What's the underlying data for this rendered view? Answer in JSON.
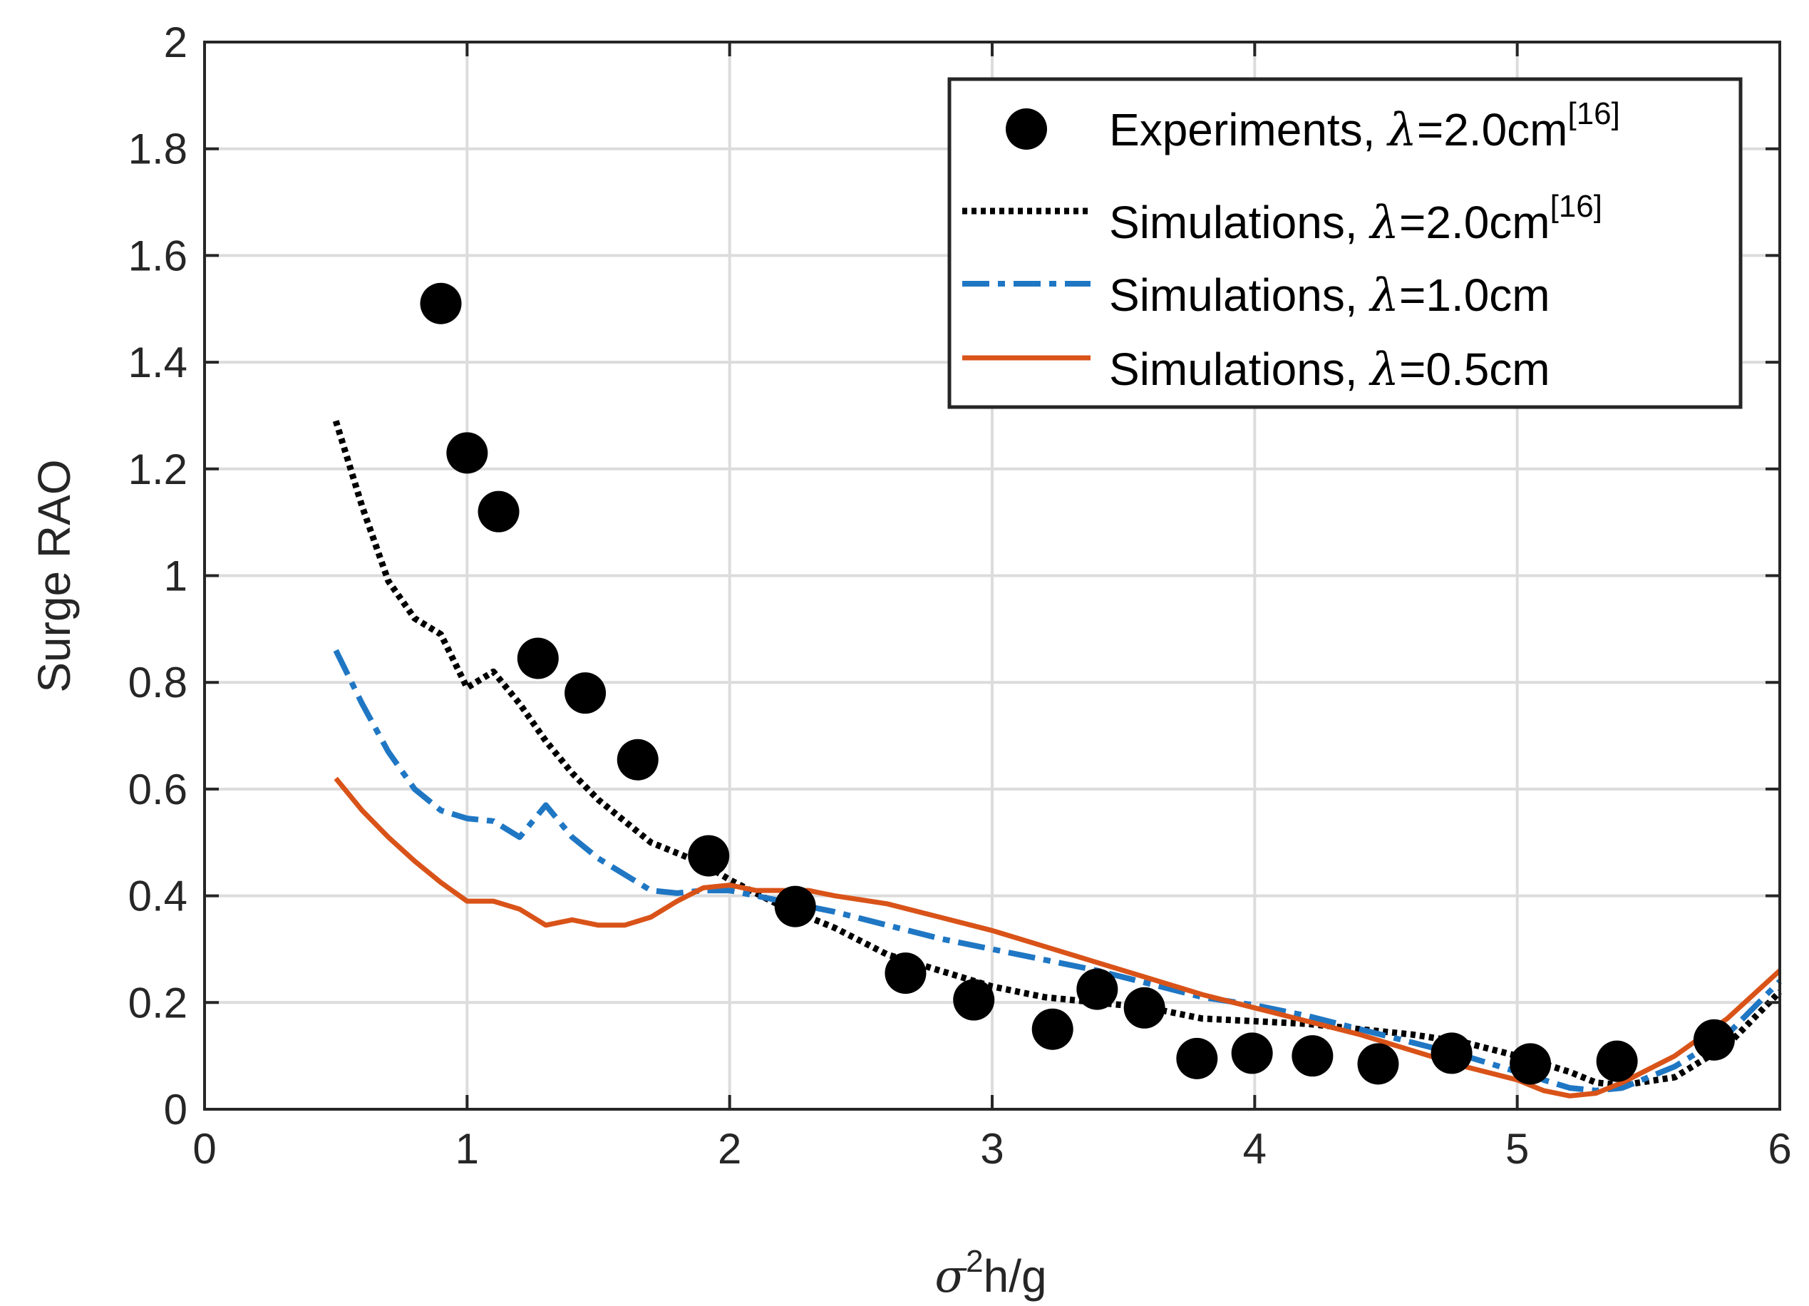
{
  "chart_data": {
    "type": "line",
    "xlabel": {
      "symbol": "σ",
      "sup": "2",
      "rest": "h/g"
    },
    "ylabel": "Surge RAO",
    "xlim": [
      0,
      6
    ],
    "ylim": [
      0,
      2
    ],
    "xticks": [
      0,
      1,
      2,
      3,
      4,
      5,
      6
    ],
    "yticks": [
      0,
      0.2,
      0.4,
      0.6,
      0.8,
      1,
      1.2,
      1.4,
      1.6,
      1.8,
      2
    ],
    "xtick_labels": [
      "0",
      "1",
      "2",
      "3",
      "4",
      "5",
      "6"
    ],
    "ytick_labels": [
      "0",
      "0.2",
      "0.4",
      "0.6",
      "0.8",
      "1",
      "1.2",
      "1.4",
      "1.6",
      "1.8",
      "2"
    ],
    "grid": true,
    "legend_position": "top-right",
    "series": [
      {
        "name": "Experiments, λ=2.0cm[16]",
        "legend": {
          "prefix": "Experiments, ",
          "symbol": "λ",
          "suffix": "=2.0cm",
          "sup": "[16]"
        },
        "style": "markers",
        "color": "#000000",
        "x": [
          0.9,
          1.0,
          1.12,
          1.27,
          1.45,
          1.65,
          1.92,
          2.25,
          2.67,
          2.93,
          3.23,
          3.4,
          3.58,
          3.78,
          3.99,
          4.22,
          4.47,
          4.75,
          5.05,
          5.38,
          5.75
        ],
        "y": [
          1.51,
          1.23,
          1.12,
          0.845,
          0.78,
          0.655,
          0.475,
          0.38,
          0.255,
          0.205,
          0.15,
          0.225,
          0.19,
          0.095,
          0.105,
          0.1,
          0.085,
          0.105,
          0.085,
          0.09,
          0.13
        ]
      },
      {
        "name": "Simulations, λ=2.0cm[16]",
        "legend": {
          "prefix": "Simulations,  ",
          "symbol": "λ",
          "suffix": "=2.0cm",
          "sup": "[16]"
        },
        "style": "dotted",
        "color": "#000000",
        "x": [
          0.5,
          0.6,
          0.7,
          0.8,
          0.9,
          1.0,
          1.1,
          1.2,
          1.3,
          1.4,
          1.5,
          1.6,
          1.7,
          1.8,
          1.9,
          2.0,
          2.2,
          2.4,
          2.6,
          2.8,
          3.0,
          3.2,
          3.4,
          3.6,
          3.8,
          4.0,
          4.2,
          4.4,
          4.6,
          4.8,
          5.0,
          5.2,
          5.3,
          5.4,
          5.6,
          5.8,
          6.0
        ],
        "y": [
          1.29,
          1.13,
          0.99,
          0.92,
          0.89,
          0.79,
          0.82,
          0.76,
          0.69,
          0.63,
          0.58,
          0.54,
          0.5,
          0.48,
          0.46,
          0.43,
          0.38,
          0.34,
          0.29,
          0.26,
          0.23,
          0.21,
          0.2,
          0.19,
          0.17,
          0.165,
          0.16,
          0.15,
          0.14,
          0.125,
          0.1,
          0.07,
          0.05,
          0.045,
          0.06,
          0.12,
          0.22
        ]
      },
      {
        "name": "Simulations, λ=1.0cm",
        "legend": {
          "prefix": "Simulations, ",
          "symbol": "λ",
          "suffix": "=1.0cm",
          "sup": ""
        },
        "style": "dashdot",
        "color": "#1f77c4",
        "x": [
          0.5,
          0.6,
          0.7,
          0.8,
          0.9,
          1.0,
          1.1,
          1.2,
          1.3,
          1.4,
          1.5,
          1.6,
          1.7,
          1.8,
          1.9,
          2.0,
          2.2,
          2.4,
          2.6,
          2.8,
          3.0,
          3.2,
          3.4,
          3.6,
          3.8,
          4.0,
          4.2,
          4.4,
          4.6,
          4.8,
          5.0,
          5.2,
          5.3,
          5.4,
          5.6,
          5.8,
          6.0
        ],
        "y": [
          0.86,
          0.76,
          0.67,
          0.6,
          0.56,
          0.545,
          0.54,
          0.51,
          0.57,
          0.51,
          0.47,
          0.44,
          0.41,
          0.405,
          0.41,
          0.41,
          0.39,
          0.37,
          0.345,
          0.32,
          0.3,
          0.28,
          0.26,
          0.235,
          0.21,
          0.195,
          0.175,
          0.15,
          0.125,
          0.1,
          0.07,
          0.04,
          0.035,
          0.04,
          0.08,
          0.14,
          0.24
        ]
      },
      {
        "name": "Simulations, λ=0.5cm",
        "legend": {
          "prefix": "Simulations, ",
          "symbol": "λ",
          "suffix": "=0.5cm",
          "sup": ""
        },
        "style": "solid",
        "color": "#d95319",
        "x": [
          0.5,
          0.6,
          0.7,
          0.8,
          0.9,
          1.0,
          1.1,
          1.2,
          1.3,
          1.4,
          1.5,
          1.6,
          1.7,
          1.8,
          1.9,
          2.0,
          2.1,
          2.2,
          2.3,
          2.4,
          2.6,
          2.8,
          3.0,
          3.2,
          3.4,
          3.6,
          3.8,
          4.0,
          4.2,
          4.4,
          4.6,
          4.8,
          5.0,
          5.1,
          5.2,
          5.3,
          5.4,
          5.6,
          5.8,
          6.0
        ],
        "y": [
          0.62,
          0.56,
          0.51,
          0.465,
          0.425,
          0.39,
          0.39,
          0.375,
          0.345,
          0.355,
          0.345,
          0.345,
          0.36,
          0.39,
          0.415,
          0.42,
          0.41,
          0.41,
          0.41,
          0.4,
          0.385,
          0.36,
          0.335,
          0.305,
          0.275,
          0.245,
          0.215,
          0.19,
          0.165,
          0.14,
          0.11,
          0.08,
          0.055,
          0.035,
          0.025,
          0.03,
          0.05,
          0.1,
          0.17,
          0.26
        ]
      }
    ]
  }
}
